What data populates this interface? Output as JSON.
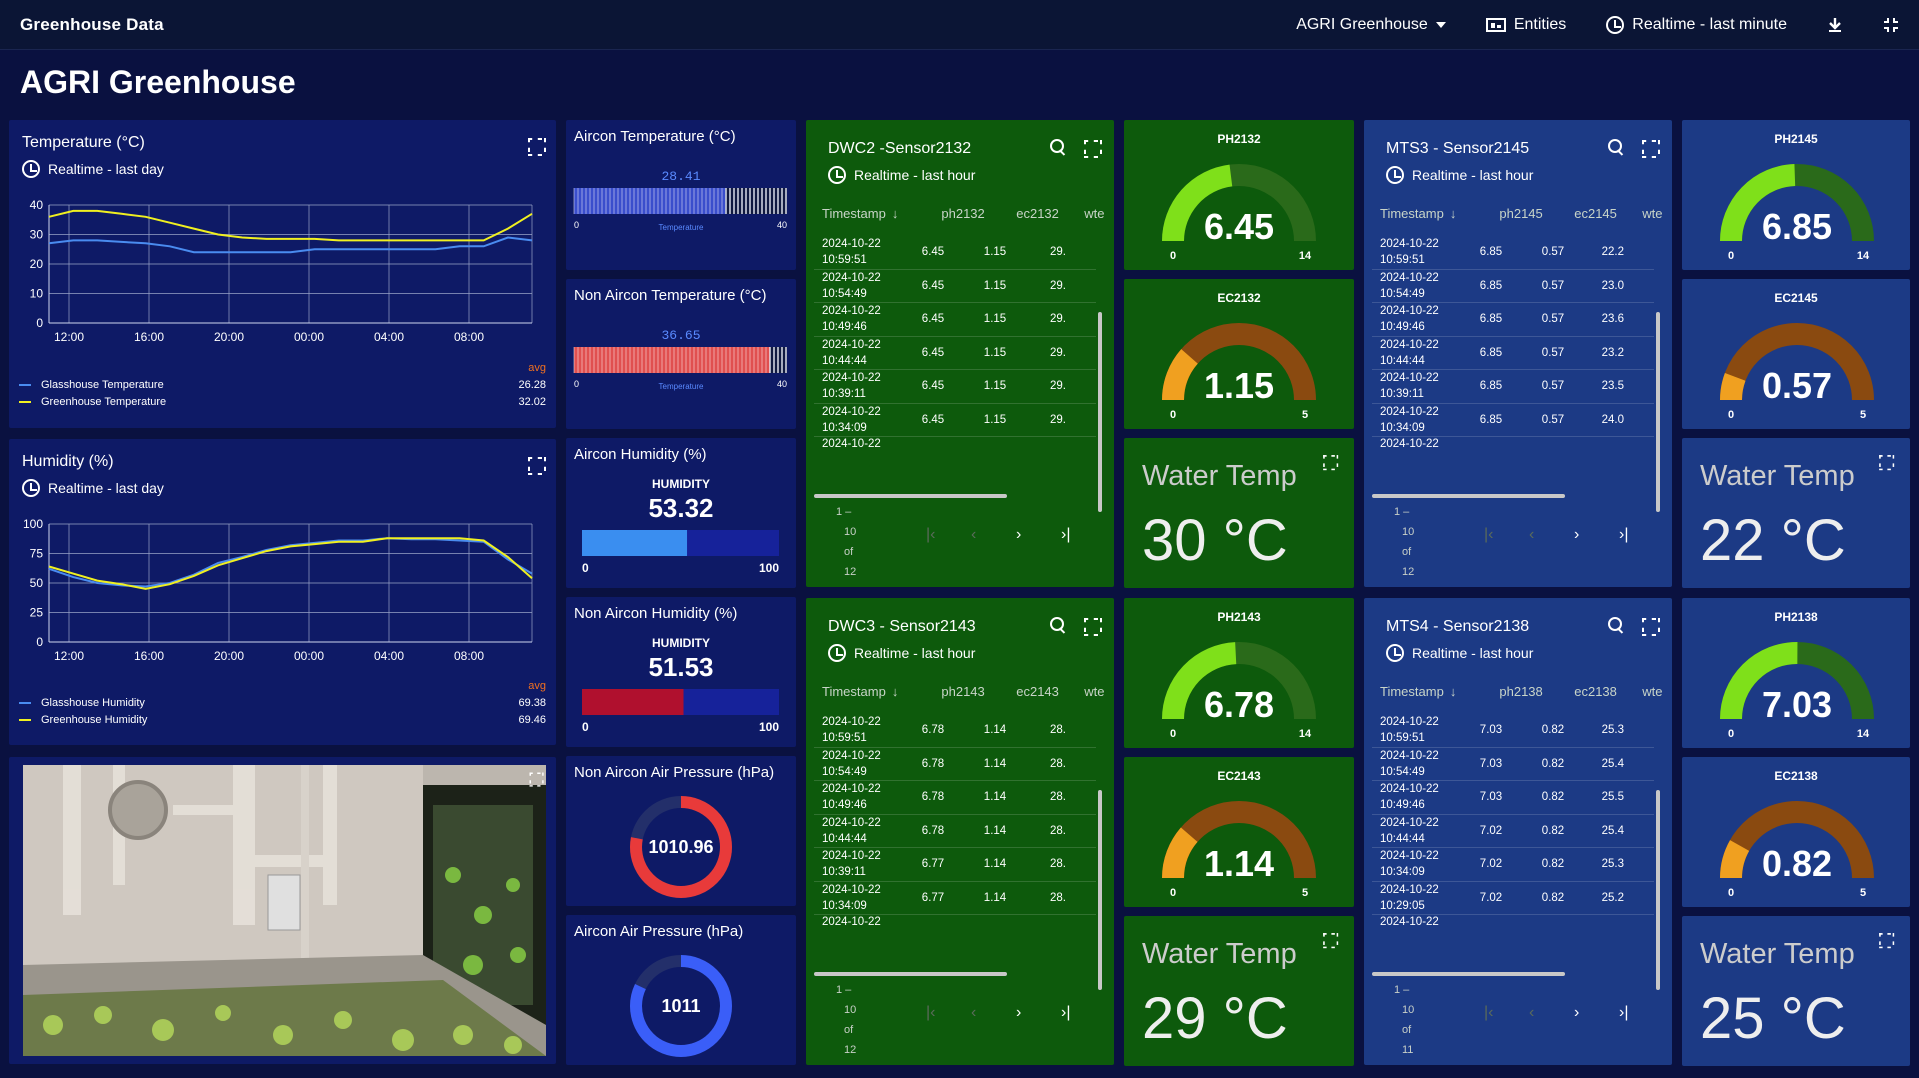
{
  "topbar": {
    "app_title": "Greenhouse Data",
    "dashboard_select": "AGRI Greenhouse",
    "entities_label": "Entities",
    "timewindow_label": "Realtime - last minute"
  },
  "page": {
    "title": "AGRI Greenhouse"
  },
  "temp_chart": {
    "title": "Temperature (°C)",
    "subtitle": "Realtime - last day",
    "avg_label": "avg",
    "chart_data": {
      "type": "line",
      "yticks": [
        "0",
        "10",
        "20",
        "30",
        "40"
      ],
      "xticks": [
        "12:00",
        "16:00",
        "20:00",
        "00:00",
        "04:00",
        "08:00"
      ],
      "ylim": [
        0,
        40
      ],
      "series": [
        {
          "name": "Glasshouse Temperature",
          "color": "#4a8cf0",
          "avg": "26.28",
          "values": [
            27,
            28,
            28,
            27.5,
            27,
            26,
            24,
            24,
            24,
            24,
            24,
            25,
            25,
            25,
            25,
            25,
            25,
            26,
            26,
            29,
            28
          ]
        },
        {
          "name": "Greenhouse Temperature",
          "color": "#f0f020",
          "avg": "32.02",
          "values": [
            36,
            38,
            38,
            37,
            36,
            34,
            32,
            30,
            29,
            28.5,
            28.5,
            28.5,
            28,
            28,
            28,
            28,
            28,
            28,
            28,
            32,
            37
          ]
        }
      ]
    }
  },
  "hum_chart": {
    "title": "Humidity (%)",
    "subtitle": "Realtime - last day",
    "avg_label": "avg",
    "chart_data": {
      "type": "line",
      "yticks": [
        "0",
        "25",
        "50",
        "75",
        "100"
      ],
      "xticks": [
        "12:00",
        "16:00",
        "20:00",
        "00:00",
        "04:00",
        "08:00"
      ],
      "ylim": [
        0,
        100
      ],
      "series": [
        {
          "name": "Glasshouse Humidity",
          "color": "#4a8cf0",
          "avg": "69.38",
          "values": [
            62,
            55,
            50,
            48,
            47,
            50,
            57,
            67,
            72,
            78,
            82,
            84,
            86,
            86,
            88,
            87,
            87,
            86,
            85,
            70,
            58
          ]
        },
        {
          "name": "Greenhouse Humidity",
          "color": "#f0f020",
          "avg": "69.46",
          "values": [
            64,
            58,
            52,
            49,
            45,
            49,
            56,
            65,
            71,
            77,
            81,
            83,
            85,
            85,
            88,
            88,
            88,
            88,
            86,
            72,
            54
          ]
        }
      ]
    }
  },
  "aircon_temp": {
    "title": "Aircon Temperature (°C)",
    "value": "28.41",
    "fill": 0.71,
    "min": "0",
    "max": "40",
    "label": "Temperature",
    "color": "#3a4ecc"
  },
  "non_aircon_temp": {
    "title": "Non Aircon Temperature (°C)",
    "value": "36.65",
    "fill": 0.92,
    "min": "0",
    "max": "40",
    "label": "Temperature",
    "color": "#e05050"
  },
  "aircon_hum": {
    "title": "Aircon Humidity (%)",
    "label": "HUMIDITY",
    "value": "53.32",
    "fill": 0.5332,
    "min": "0",
    "max": "100",
    "color": "#3a8ef0"
  },
  "non_aircon_hum": {
    "title": "Non Aircon Humidity (%)",
    "label": "HUMIDITY",
    "value": "51.53",
    "fill": 0.5153,
    "min": "0",
    "max": "100",
    "color": "#b0102e"
  },
  "non_aircon_pressure": {
    "title": "Non Aircon Air Pressure (hPa)",
    "value": "1010.96",
    "fill": 0.78,
    "color": "#e83a3a"
  },
  "aircon_pressure": {
    "title": "Aircon Air Pressure (hPa)",
    "value": "1011",
    "fill": 0.82,
    "color": "#3a5ef8"
  },
  "tables": [
    {
      "title": "DWC2 -Sensor2132",
      "subtitle": "Realtime - last hour",
      "cols": [
        "Timestamp",
        "ph2132",
        "ec2132",
        "wte"
      ],
      "rows": [
        [
          "2024-10-22",
          "10:59:51",
          "6.45",
          "1.15",
          "29."
        ],
        [
          "2024-10-22",
          "10:54:49",
          "6.45",
          "1.15",
          "29."
        ],
        [
          "2024-10-22",
          "10:49:46",
          "6.45",
          "1.15",
          "29."
        ],
        [
          "2024-10-22",
          "10:44:44",
          "6.45",
          "1.15",
          "29."
        ],
        [
          "2024-10-22",
          "10:39:11",
          "6.45",
          "1.15",
          "29."
        ],
        [
          "2024-10-22",
          "10:34:09",
          "6.45",
          "1.15",
          "29."
        ]
      ],
      "partial": "2024-10-22",
      "pager": [
        "1 –",
        "10",
        "of",
        "12"
      ]
    },
    {
      "title": "DWC3 - Sensor2143",
      "subtitle": "Realtime - last hour",
      "cols": [
        "Timestamp",
        "ph2143",
        "ec2143",
        "wte"
      ],
      "rows": [
        [
          "2024-10-22",
          "10:59:51",
          "6.78",
          "1.14",
          "28."
        ],
        [
          "2024-10-22",
          "10:54:49",
          "6.78",
          "1.14",
          "28."
        ],
        [
          "2024-10-22",
          "10:49:46",
          "6.78",
          "1.14",
          "28."
        ],
        [
          "2024-10-22",
          "10:44:44",
          "6.78",
          "1.14",
          "28."
        ],
        [
          "2024-10-22",
          "10:39:11",
          "6.77",
          "1.14",
          "28."
        ],
        [
          "2024-10-22",
          "10:34:09",
          "6.77",
          "1.14",
          "28."
        ]
      ],
      "partial": "2024-10-22",
      "pager": [
        "1 –",
        "10",
        "of",
        "12"
      ]
    },
    {
      "title": "MTS3 - Sensor2145",
      "subtitle": "Realtime - last hour",
      "cols": [
        "Timestamp",
        "ph2145",
        "ec2145",
        "wte"
      ],
      "rows": [
        [
          "2024-10-22",
          "10:59:51",
          "6.85",
          "0.57",
          "22.2"
        ],
        [
          "2024-10-22",
          "10:54:49",
          "6.85",
          "0.57",
          "23.0"
        ],
        [
          "2024-10-22",
          "10:49:46",
          "6.85",
          "0.57",
          "23.6"
        ],
        [
          "2024-10-22",
          "10:44:44",
          "6.85",
          "0.57",
          "23.2"
        ],
        [
          "2024-10-22",
          "10:39:11",
          "6.85",
          "0.57",
          "23.5"
        ],
        [
          "2024-10-22",
          "10:34:09",
          "6.85",
          "0.57",
          "24.0"
        ]
      ],
      "partial": "2024-10-22",
      "pager": [
        "1 –",
        "10",
        "of",
        "12"
      ]
    },
    {
      "title": "MTS4 - Sensor2138",
      "subtitle": "Realtime - last hour",
      "cols": [
        "Timestamp",
        "ph2138",
        "ec2138",
        "wte"
      ],
      "rows": [
        [
          "2024-10-22",
          "10:59:51",
          "7.03",
          "0.82",
          "25.3"
        ],
        [
          "2024-10-22",
          "10:54:49",
          "7.03",
          "0.82",
          "25.4"
        ],
        [
          "2024-10-22",
          "10:49:46",
          "7.03",
          "0.82",
          "25.5"
        ],
        [
          "2024-10-22",
          "10:44:44",
          "7.02",
          "0.82",
          "25.4"
        ],
        [
          "2024-10-22",
          "10:34:09",
          "7.02",
          "0.82",
          "25.3"
        ],
        [
          "2024-10-22",
          "10:29:05",
          "7.02",
          "0.82",
          "25.2"
        ]
      ],
      "partial": "2024-10-22",
      "pager": [
        "1 –",
        "10",
        "of",
        "11"
      ]
    }
  ],
  "gauges": [
    {
      "title": "PH2132",
      "value": "6.45",
      "min": "0",
      "max": "14",
      "fill": 0.4607,
      "color": "#7fe01a",
      "track": "#2a6a1a"
    },
    {
      "title": "EC2132",
      "value": "1.15",
      "min": "0",
      "max": "5",
      "fill": 0.23,
      "color": "#f0a020",
      "track": "#8a4a10"
    },
    {
      "title": "PH2143",
      "value": "6.78",
      "min": "0",
      "max": "14",
      "fill": 0.4843,
      "color": "#7fe01a",
      "track": "#2a6a1a"
    },
    {
      "title": "EC2143",
      "value": "1.14",
      "min": "0",
      "max": "5",
      "fill": 0.228,
      "color": "#f0a020",
      "track": "#8a4a10"
    },
    {
      "title": "PH2145",
      "value": "6.85",
      "min": "0",
      "max": "14",
      "fill": 0.4893,
      "color": "#7fe01a",
      "track": "#2a6a1a"
    },
    {
      "title": "EC2145",
      "value": "0.57",
      "min": "0",
      "max": "5",
      "fill": 0.114,
      "color": "#f0a020",
      "track": "#8a4a10"
    },
    {
      "title": "PH2138",
      "value": "7.03",
      "min": "0",
      "max": "14",
      "fill": 0.5021,
      "color": "#7fe01a",
      "track": "#2a6a1a"
    },
    {
      "title": "EC2138",
      "value": "0.82",
      "min": "0",
      "max": "5",
      "fill": 0.164,
      "color": "#f0a020",
      "track": "#8a4a10"
    }
  ],
  "water_temps": [
    {
      "title": "Water Temp",
      "value": "30 °C"
    },
    {
      "title": "Water Temp",
      "value": "29 °C"
    },
    {
      "title": "Water Temp",
      "value": "22 °C"
    },
    {
      "title": "Water Temp",
      "value": "25 °C"
    }
  ]
}
